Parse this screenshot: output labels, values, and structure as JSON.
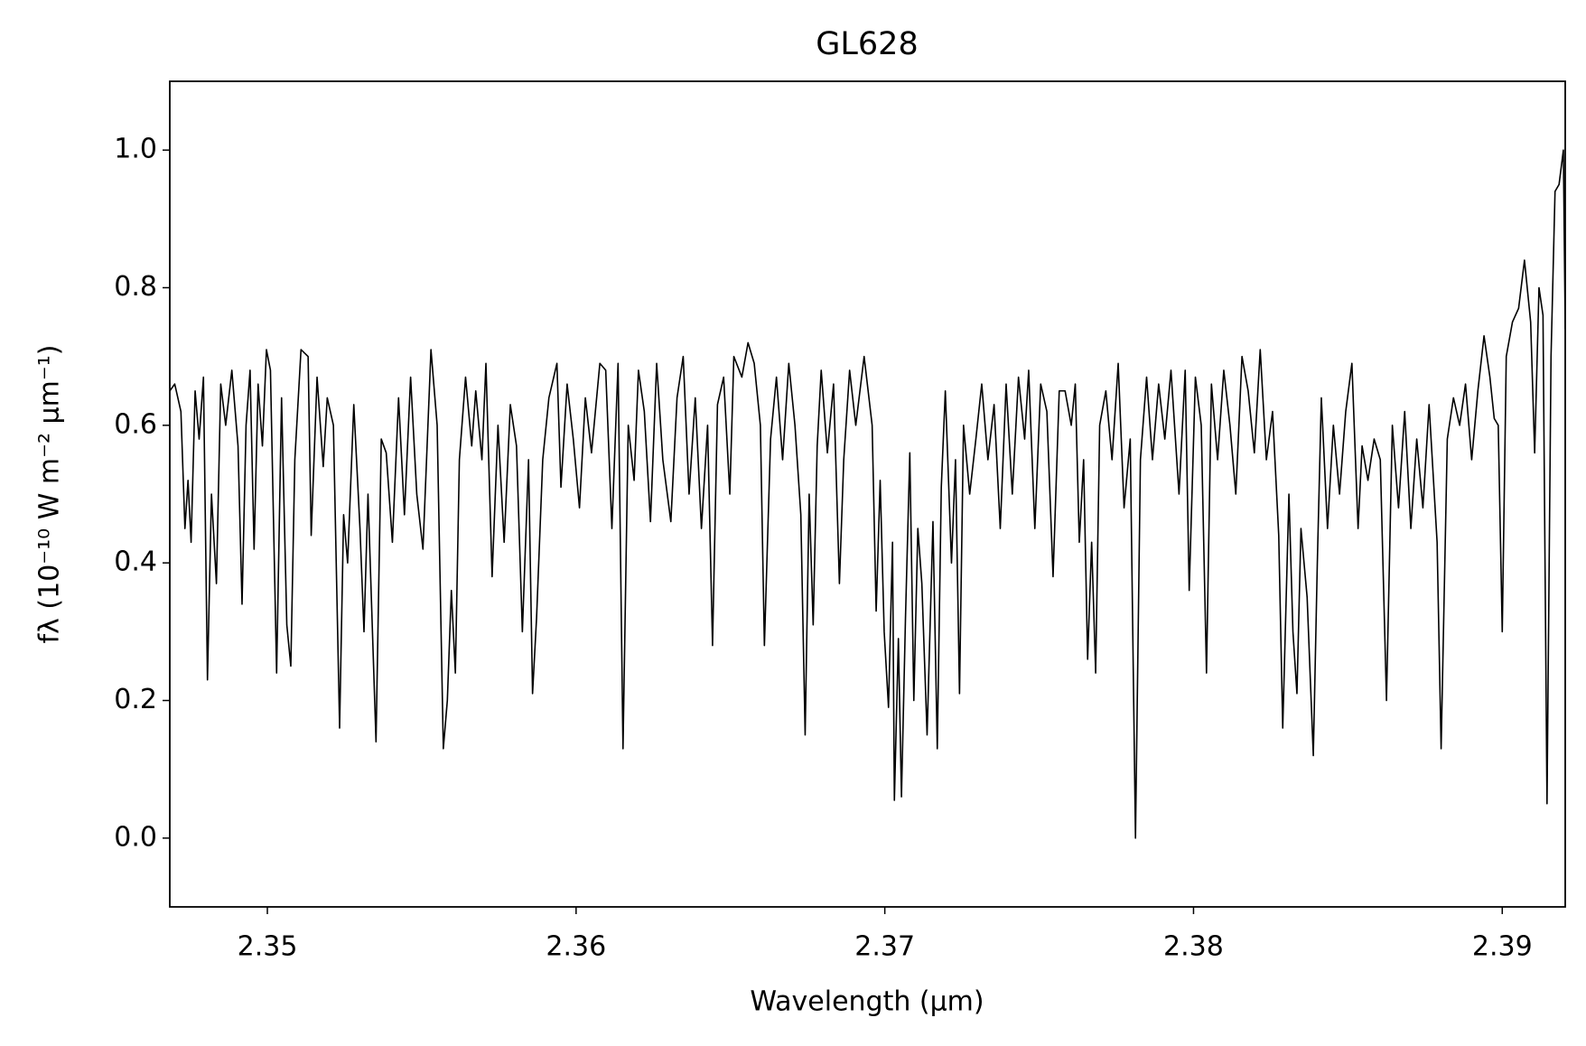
{
  "chart_data": {
    "type": "line",
    "title": "GL628",
    "x_label": "Wavelength (μm)",
    "y_label": "fλ (10⁻¹⁰ W m⁻² μm⁻¹)",
    "color": "#000000",
    "xlim": [
      2.34684,
      2.39204
    ],
    "ylim": [
      -0.1,
      1.1
    ],
    "xticks": [
      2.35,
      2.36,
      2.37,
      2.38,
      2.39
    ],
    "yticks": [
      {
        "value": 0,
        "label": "0.0"
      },
      0.2,
      0.4,
      0.6,
      0.8,
      {
        "value": 1,
        "label": "1.0"
      }
    ],
    "grid": false,
    "x": [
      2.34684,
      2.347,
      2.3472,
      2.34733,
      2.34743,
      2.34753,
      2.34766,
      2.34779,
      2.34793,
      2.34806,
      2.34819,
      2.34835,
      2.34849,
      2.34865,
      2.34885,
      2.34905,
      2.34918,
      2.34931,
      2.34944,
      2.34957,
      2.3497,
      2.34984,
      2.34997,
      2.3501,
      2.3503,
      2.35046,
      2.35063,
      2.35076,
      2.35089,
      2.35109,
      2.35132,
      2.35142,
      2.35161,
      2.35181,
      2.35194,
      2.35214,
      2.35234,
      2.35247,
      2.3526,
      2.3528,
      2.353,
      2.35313,
      2.35326,
      2.35352,
      2.35369,
      2.35385,
      2.35405,
      2.35425,
      2.35444,
      2.35464,
      2.35484,
      2.35504,
      2.3553,
      2.3555,
      2.3557,
      2.35583,
      2.35596,
      2.35609,
      2.35622,
      2.35642,
      2.35662,
      2.35675,
      2.35695,
      2.35708,
      2.35728,
      2.35747,
      2.35767,
      2.35787,
      2.35807,
      2.35826,
      2.35846,
      2.35859,
      2.35872,
      2.35892,
      2.35912,
      2.35938,
      2.35951,
      2.35971,
      2.35991,
      2.36011,
      2.3603,
      2.3605,
      2.36077,
      2.36096,
      2.36116,
      2.36136,
      2.36152,
      2.36169,
      2.36188,
      2.36202,
      2.36221,
      2.36241,
      2.36261,
      2.36281,
      2.36307,
      2.36327,
      2.36347,
      2.36366,
      2.36386,
      2.36406,
      2.36426,
      2.36442,
      2.36458,
      2.36478,
      2.36498,
      2.36511,
      2.36537,
      2.36557,
      2.36577,
      2.36597,
      2.3661,
      2.3663,
      2.36649,
      2.36669,
      2.36689,
      2.36709,
      2.36728,
      2.36742,
      2.36755,
      2.36768,
      2.36781,
      2.36794,
      2.36814,
      2.36834,
      2.36853,
      2.36867,
      2.36886,
      2.36906,
      2.36933,
      2.36959,
      2.36972,
      2.36985,
      2.36998,
      2.37012,
      2.37025,
      2.37031,
      2.37044,
      2.37054,
      2.37067,
      2.37081,
      2.37094,
      2.37107,
      2.3712,
      2.37137,
      2.37156,
      2.3717,
      2.37183,
      2.37196,
      2.37216,
      2.37229,
      2.37242,
      2.37255,
      2.37275,
      2.37295,
      2.37314,
      2.37334,
      2.37354,
      2.37374,
      2.37393,
      2.37413,
      2.37433,
      2.37453,
      2.37466,
      2.37486,
      2.37505,
      2.37525,
      2.37545,
      2.37565,
      2.37584,
      2.37604,
      2.37617,
      2.3763,
      2.37644,
      2.37657,
      2.3767,
      2.37683,
      2.37696,
      2.37716,
      2.37736,
      2.37756,
      2.37775,
      2.37795,
      2.37812,
      2.37828,
      2.37848,
      2.37867,
      2.37887,
      2.37907,
      2.37927,
      2.37953,
      2.37973,
      2.37986,
      2.38006,
      2.38025,
      2.38042,
      2.38058,
      2.38078,
      2.38098,
      2.38118,
      2.38137,
      2.38157,
      2.38177,
      2.38197,
      2.38216,
      2.38236,
      2.38256,
      2.38276,
      2.38289,
      2.38309,
      2.38322,
      2.38335,
      2.38348,
      2.38368,
      2.38388,
      2.38401,
      2.38414,
      2.38434,
      2.38453,
      2.38473,
      2.38493,
      2.38513,
      2.38533,
      2.38546,
      2.38565,
      2.38585,
      2.38605,
      2.38625,
      2.38644,
      2.38664,
      2.38684,
      2.38704,
      2.38723,
      2.38743,
      2.38763,
      2.38789,
      2.38802,
      2.38822,
      2.38842,
      2.38862,
      2.38881,
      2.38901,
      2.38921,
      2.38941,
      2.3896,
      2.38974,
      2.38987,
      2.39,
      2.39013,
      2.39033,
      2.39053,
      2.39072,
      2.39092,
      2.39105,
      2.39119,
      2.39132,
      2.39145,
      2.39158,
      2.39171,
      2.39184,
      2.39198,
      2.39204
    ],
    "values": [
      0.65,
      0.66,
      0.62,
      0.45,
      0.52,
      0.43,
      0.65,
      0.58,
      0.67,
      0.23,
      0.5,
      0.37,
      0.66,
      0.6,
      0.68,
      0.57,
      0.34,
      0.6,
      0.68,
      0.42,
      0.66,
      0.57,
      0.71,
      0.68,
      0.24,
      0.64,
      0.31,
      0.25,
      0.55,
      0.71,
      0.7,
      0.44,
      0.67,
      0.54,
      0.64,
      0.6,
      0.16,
      0.47,
      0.4,
      0.63,
      0.45,
      0.3,
      0.5,
      0.14,
      0.58,
      0.56,
      0.43,
      0.64,
      0.47,
      0.67,
      0.5,
      0.42,
      0.71,
      0.6,
      0.13,
      0.2,
      0.36,
      0.24,
      0.55,
      0.67,
      0.57,
      0.65,
      0.55,
      0.69,
      0.38,
      0.6,
      0.43,
      0.63,
      0.57,
      0.3,
      0.55,
      0.21,
      0.32,
      0.55,
      0.64,
      0.69,
      0.51,
      0.66,
      0.58,
      0.48,
      0.64,
      0.56,
      0.69,
      0.68,
      0.45,
      0.69,
      0.13,
      0.6,
      0.52,
      0.68,
      0.62,
      0.46,
      0.69,
      0.55,
      0.46,
      0.64,
      0.7,
      0.5,
      0.64,
      0.45,
      0.6,
      0.28,
      0.63,
      0.67,
      0.5,
      0.7,
      0.67,
      0.72,
      0.69,
      0.6,
      0.28,
      0.58,
      0.67,
      0.55,
      0.69,
      0.6,
      0.47,
      0.15,
      0.5,
      0.31,
      0.57,
      0.68,
      0.56,
      0.66,
      0.37,
      0.55,
      0.68,
      0.6,
      0.7,
      0.6,
      0.33,
      0.52,
      0.3,
      0.19,
      0.43,
      0.055,
      0.29,
      0.06,
      0.32,
      0.56,
      0.2,
      0.45,
      0.37,
      0.15,
      0.46,
      0.13,
      0.51,
      0.65,
      0.4,
      0.55,
      0.21,
      0.6,
      0.5,
      0.58,
      0.66,
      0.55,
      0.63,
      0.45,
      0.66,
      0.5,
      0.67,
      0.58,
      0.68,
      0.45,
      0.66,
      0.62,
      0.38,
      0.65,
      0.65,
      0.6,
      0.66,
      0.43,
      0.55,
      0.26,
      0.43,
      0.24,
      0.6,
      0.65,
      0.55,
      0.69,
      0.48,
      0.58,
      0.0,
      0.55,
      0.67,
      0.55,
      0.66,
      0.58,
      0.68,
      0.5,
      0.68,
      0.36,
      0.67,
      0.6,
      0.24,
      0.66,
      0.55,
      0.68,
      0.6,
      0.5,
      0.7,
      0.65,
      0.56,
      0.71,
      0.55,
      0.62,
      0.44,
      0.16,
      0.5,
      0.3,
      0.21,
      0.45,
      0.35,
      0.12,
      0.4,
      0.64,
      0.45,
      0.6,
      0.5,
      0.62,
      0.69,
      0.45,
      0.57,
      0.52,
      0.58,
      0.55,
      0.2,
      0.6,
      0.48,
      0.62,
      0.45,
      0.58,
      0.48,
      0.63,
      0.43,
      0.13,
      0.58,
      0.64,
      0.6,
      0.66,
      0.55,
      0.65,
      0.73,
      0.67,
      0.61,
      0.6,
      0.3,
      0.7,
      0.75,
      0.77,
      0.84,
      0.75,
      0.56,
      0.8,
      0.76,
      0.05,
      0.7,
      0.94,
      0.95,
      1.0,
      0.74
    ]
  }
}
